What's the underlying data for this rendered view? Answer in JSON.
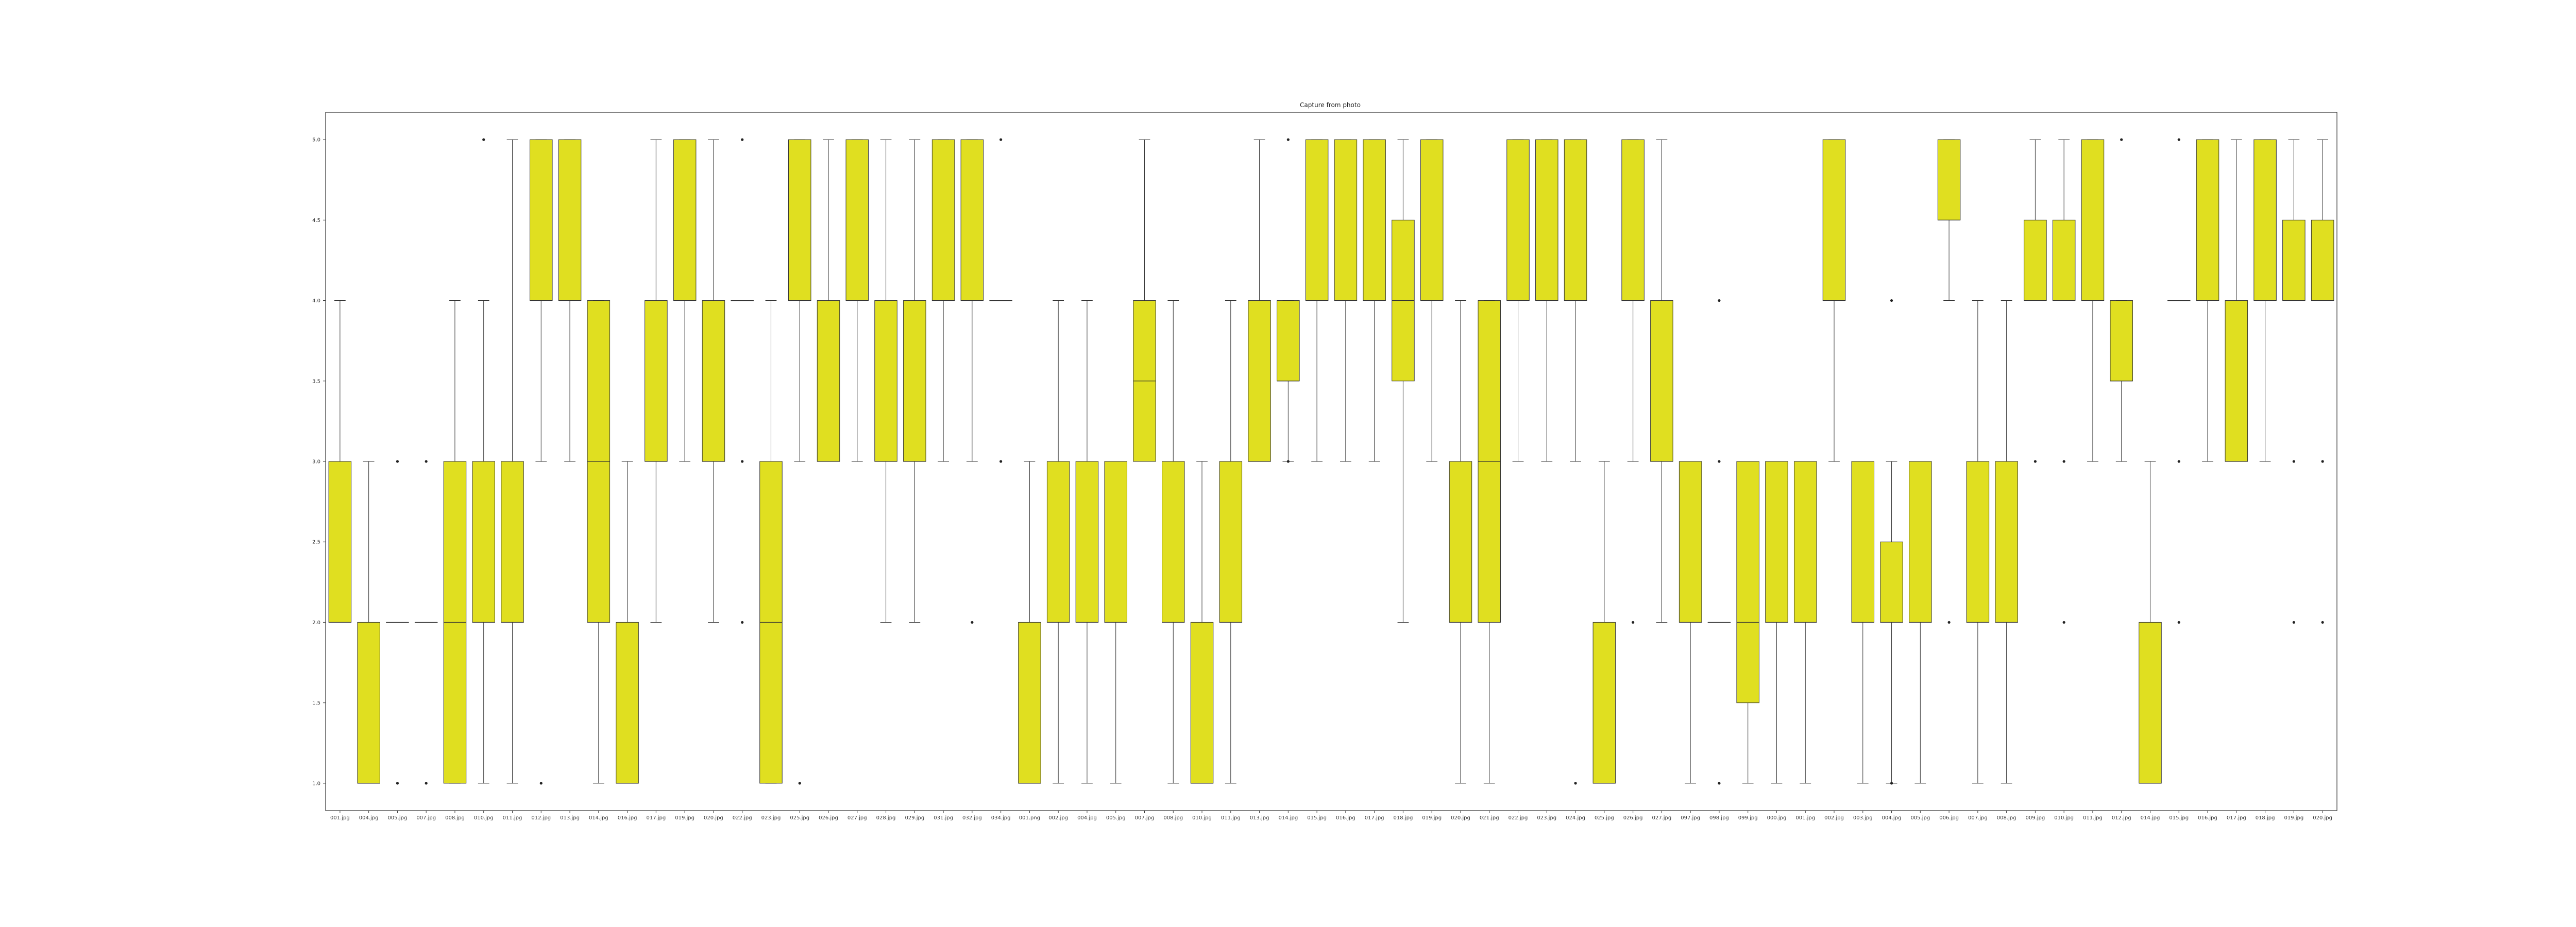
{
  "chart_data": {
    "type": "box",
    "title": "Capture from photo",
    "xlabel": "",
    "ylabel": "",
    "ylim": [
      0.83,
      5.17
    ],
    "yticks": [
      1.0,
      1.5,
      2.0,
      2.5,
      3.0,
      3.5,
      4.0,
      4.5,
      5.0
    ],
    "ytick_labels": [
      "1.0",
      "1.5",
      "2.0",
      "2.5",
      "3.0",
      "3.5",
      "4.0",
      "4.5",
      "5.0"
    ],
    "grid": false,
    "box_color": "#e0df20",
    "edge_color": "#333333",
    "series": [
      {
        "label": "001.jpg",
        "q1": 2,
        "med": 2,
        "q3": 3,
        "wlo": 2,
        "whi": 4,
        "fl": []
      },
      {
        "label": "004.jpg",
        "q1": 1,
        "med": 1,
        "q3": 2,
        "wlo": 1,
        "whi": 3,
        "fl": []
      },
      {
        "label": "005.jpg",
        "q1": 2,
        "med": 2,
        "q3": 2,
        "wlo": 2,
        "whi": 2,
        "fl": [
          1,
          3
        ]
      },
      {
        "label": "007.jpg",
        "q1": 2,
        "med": 2,
        "q3": 2,
        "wlo": 2,
        "whi": 2,
        "fl": [
          1,
          3
        ]
      },
      {
        "label": "008.jpg",
        "q1": 1,
        "med": 2,
        "q3": 3,
        "wlo": 1,
        "whi": 4,
        "fl": []
      },
      {
        "label": "010.jpg",
        "q1": 2,
        "med": 2,
        "q3": 3,
        "wlo": 1,
        "whi": 4,
        "fl": [
          5
        ]
      },
      {
        "label": "011.jpg",
        "q1": 2,
        "med": 2,
        "q3": 3,
        "wlo": 1,
        "whi": 5,
        "fl": []
      },
      {
        "label": "012.jpg",
        "q1": 4,
        "med": 4,
        "q3": 5,
        "wlo": 3,
        "whi": 5,
        "fl": [
          1
        ]
      },
      {
        "label": "013.jpg",
        "q1": 4,
        "med": 4,
        "q3": 5,
        "wlo": 3,
        "whi": 5,
        "fl": []
      },
      {
        "label": "014.jpg",
        "q1": 2,
        "med": 3,
        "q3": 4,
        "wlo": 1,
        "whi": 4,
        "fl": []
      },
      {
        "label": "016.jpg",
        "q1": 1,
        "med": 1,
        "q3": 2,
        "wlo": 1,
        "whi": 3,
        "fl": []
      },
      {
        "label": "017.jpg",
        "q1": 3,
        "med": 3,
        "q3": 4,
        "wlo": 2,
        "whi": 5,
        "fl": []
      },
      {
        "label": "019.jpg",
        "q1": 4,
        "med": 4,
        "q3": 5,
        "wlo": 3,
        "whi": 5,
        "fl": []
      },
      {
        "label": "020.jpg",
        "q1": 3,
        "med": 3,
        "q3": 4,
        "wlo": 2,
        "whi": 5,
        "fl": []
      },
      {
        "label": "022.jpg",
        "q1": 4,
        "med": 4,
        "q3": 4,
        "wlo": 4,
        "whi": 4,
        "fl": [
          5,
          3,
          2
        ]
      },
      {
        "label": "023.jpg",
        "q1": 1,
        "med": 2,
        "q3": 3,
        "wlo": 1,
        "whi": 4,
        "fl": []
      },
      {
        "label": "025.jpg",
        "q1": 4,
        "med": 4,
        "q3": 5,
        "wlo": 3,
        "whi": 5,
        "fl": [
          1
        ]
      },
      {
        "label": "026.jpg",
        "q1": 3,
        "med": 3,
        "q3": 4,
        "wlo": 3,
        "whi": 5,
        "fl": []
      },
      {
        "label": "027.jpg",
        "q1": 4,
        "med": 4,
        "q3": 5,
        "wlo": 3,
        "whi": 5,
        "fl": []
      },
      {
        "label": "028.jpg",
        "q1": 3,
        "med": 3,
        "q3": 4,
        "wlo": 2,
        "whi": 5,
        "fl": []
      },
      {
        "label": "029.jpg",
        "q1": 3,
        "med": 3,
        "q3": 4,
        "wlo": 2,
        "whi": 5,
        "fl": []
      },
      {
        "label": "031.jpg",
        "q1": 4,
        "med": 4,
        "q3": 5,
        "wlo": 3,
        "whi": 5,
        "fl": []
      },
      {
        "label": "032.jpg",
        "q1": 4,
        "med": 4,
        "q3": 5,
        "wlo": 3,
        "whi": 5,
        "fl": [
          2
        ]
      },
      {
        "label": "034.jpg",
        "q1": 4,
        "med": 4,
        "q3": 4,
        "wlo": 4,
        "whi": 4,
        "fl": [
          5,
          3
        ]
      },
      {
        "label": "001.png",
        "q1": 1,
        "med": 1,
        "q3": 2,
        "wlo": 1,
        "whi": 3,
        "fl": []
      },
      {
        "label": "002.jpg",
        "q1": 2,
        "med": 2,
        "q3": 3,
        "wlo": 1,
        "whi": 4,
        "fl": []
      },
      {
        "label": "004.jpg",
        "q1": 2,
        "med": 2,
        "q3": 3,
        "wlo": 1,
        "whi": 4,
        "fl": []
      },
      {
        "label": "005.jpg",
        "q1": 2,
        "med": 2,
        "q3": 3,
        "wlo": 1,
        "whi": 3,
        "fl": []
      },
      {
        "label": "007.jpg",
        "q1": 3,
        "med": 3.5,
        "q3": 4,
        "wlo": 3,
        "whi": 5,
        "fl": []
      },
      {
        "label": "008.jpg",
        "q1": 2,
        "med": 2,
        "q3": 3,
        "wlo": 1,
        "whi": 4,
        "fl": []
      },
      {
        "label": "010.jpg",
        "q1": 1,
        "med": 1,
        "q3": 2,
        "wlo": 1,
        "whi": 3,
        "fl": []
      },
      {
        "label": "011.jpg",
        "q1": 2,
        "med": 2,
        "q3": 3,
        "wlo": 1,
        "whi": 4,
        "fl": []
      },
      {
        "label": "013.jpg",
        "q1": 3,
        "med": 3,
        "q3": 4,
        "wlo": 3,
        "whi": 5,
        "fl": []
      },
      {
        "label": "014.jpg",
        "q1": 3.5,
        "med": 3.5,
        "q3": 4,
        "wlo": 3,
        "whi": 4,
        "fl": [
          5,
          3
        ]
      },
      {
        "label": "015.jpg",
        "q1": 4,
        "med": 4,
        "q3": 5,
        "wlo": 3,
        "whi": 5,
        "fl": []
      },
      {
        "label": "016.jpg",
        "q1": 4,
        "med": 4,
        "q3": 5,
        "wlo": 3,
        "whi": 5,
        "fl": []
      },
      {
        "label": "017.jpg",
        "q1": 4,
        "med": 4,
        "q3": 5,
        "wlo": 3,
        "whi": 5,
        "fl": []
      },
      {
        "label": "018.jpg",
        "q1": 3.5,
        "med": 4,
        "q3": 4.5,
        "wlo": 2,
        "whi": 5,
        "fl": []
      },
      {
        "label": "019.jpg",
        "q1": 4,
        "med": 4,
        "q3": 5,
        "wlo": 3,
        "whi": 5,
        "fl": []
      },
      {
        "label": "020.jpg",
        "q1": 2,
        "med": 2,
        "q3": 3,
        "wlo": 1,
        "whi": 4,
        "fl": []
      },
      {
        "label": "021.jpg",
        "q1": 2,
        "med": 3,
        "q3": 4,
        "wlo": 1,
        "whi": 4,
        "fl": []
      },
      {
        "label": "022.jpg",
        "q1": 4,
        "med": 4,
        "q3": 5,
        "wlo": 3,
        "whi": 5,
        "fl": []
      },
      {
        "label": "023.jpg",
        "q1": 4,
        "med": 4,
        "q3": 5,
        "wlo": 3,
        "whi": 5,
        "fl": []
      },
      {
        "label": "024.jpg",
        "q1": 4,
        "med": 4,
        "q3": 5,
        "wlo": 3,
        "whi": 5,
        "fl": [
          1
        ]
      },
      {
        "label": "025.jpg",
        "q1": 1,
        "med": 1,
        "q3": 2,
        "wlo": 1,
        "whi": 3,
        "fl": []
      },
      {
        "label": "026.jpg",
        "q1": 4,
        "med": 4,
        "q3": 5,
        "wlo": 3,
        "whi": 5,
        "fl": [
          2
        ]
      },
      {
        "label": "027.jpg",
        "q1": 3,
        "med": 3,
        "q3": 4,
        "wlo": 2,
        "whi": 5,
        "fl": []
      },
      {
        "label": "097.jpg",
        "q1": 2,
        "med": 2,
        "q3": 3,
        "wlo": 1,
        "whi": 3,
        "fl": []
      },
      {
        "label": "098.jpg",
        "q1": 2,
        "med": 2,
        "q3": 2,
        "wlo": 2,
        "whi": 2,
        "fl": [
          4,
          3,
          1
        ]
      },
      {
        "label": "099.jpg",
        "q1": 1.5,
        "med": 2,
        "q3": 3,
        "wlo": 1,
        "whi": 3,
        "fl": []
      },
      {
        "label": "000.jpg",
        "q1": 2,
        "med": 2,
        "q3": 3,
        "wlo": 1,
        "whi": 3,
        "fl": []
      },
      {
        "label": "001.jpg",
        "q1": 2,
        "med": 2,
        "q3": 3,
        "wlo": 1,
        "whi": 3,
        "fl": []
      },
      {
        "label": "002.jpg",
        "q1": 4,
        "med": 4,
        "q3": 5,
        "wlo": 3,
        "whi": 5,
        "fl": []
      },
      {
        "label": "003.jpg",
        "q1": 2,
        "med": 2,
        "q3": 3,
        "wlo": 1,
        "whi": 3,
        "fl": []
      },
      {
        "label": "004.jpg",
        "q1": 2,
        "med": 2,
        "q3": 2.5,
        "wlo": 1,
        "whi": 3,
        "fl": [
          4,
          1
        ]
      },
      {
        "label": "005.jpg",
        "q1": 2,
        "med": 2,
        "q3": 3,
        "wlo": 1,
        "whi": 3,
        "fl": []
      },
      {
        "label": "006.jpg",
        "q1": 4.5,
        "med": 4.5,
        "q3": 5,
        "wlo": 4,
        "whi": 5,
        "fl": [
          2
        ]
      },
      {
        "label": "007.jpg",
        "q1": 2,
        "med": 2,
        "q3": 3,
        "wlo": 1,
        "whi": 4,
        "fl": []
      },
      {
        "label": "008.jpg",
        "q1": 2,
        "med": 2,
        "q3": 3,
        "wlo": 1,
        "whi": 4,
        "fl": []
      },
      {
        "label": "009.jpg",
        "q1": 4,
        "med": 4,
        "q3": 4.5,
        "wlo": 4,
        "whi": 5,
        "fl": [
          3
        ]
      },
      {
        "label": "010.jpg",
        "q1": 4,
        "med": 4,
        "q3": 4.5,
        "wlo": 4,
        "whi": 5,
        "fl": [
          3,
          2
        ]
      },
      {
        "label": "011.jpg",
        "q1": 4,
        "med": 4,
        "q3": 5,
        "wlo": 3,
        "whi": 5,
        "fl": []
      },
      {
        "label": "012.jpg",
        "q1": 3.5,
        "med": 3.5,
        "q3": 4,
        "wlo": 3,
        "whi": 4,
        "fl": [
          5
        ]
      },
      {
        "label": "014.jpg",
        "q1": 1,
        "med": 1,
        "q3": 2,
        "wlo": 1,
        "whi": 3,
        "fl": []
      },
      {
        "label": "015.jpg",
        "q1": 4,
        "med": 4,
        "q3": 4,
        "wlo": 4,
        "whi": 4,
        "fl": [
          5,
          3,
          2
        ]
      },
      {
        "label": "016.jpg",
        "q1": 4,
        "med": 4,
        "q3": 5,
        "wlo": 3,
        "whi": 5,
        "fl": []
      },
      {
        "label": "017.jpg",
        "q1": 3,
        "med": 3,
        "q3": 4,
        "wlo": 3,
        "whi": 5,
        "fl": []
      },
      {
        "label": "018.jpg",
        "q1": 4,
        "med": 4,
        "q3": 5,
        "wlo": 3,
        "whi": 5,
        "fl": []
      },
      {
        "label": "019.jpg",
        "q1": 4,
        "med": 4,
        "q3": 4.5,
        "wlo": 4,
        "whi": 5,
        "fl": [
          3,
          2
        ]
      },
      {
        "label": "020.jpg",
        "q1": 4,
        "med": 4,
        "q3": 4.5,
        "wlo": 4,
        "whi": 5,
        "fl": [
          3,
          2
        ]
      }
    ]
  }
}
